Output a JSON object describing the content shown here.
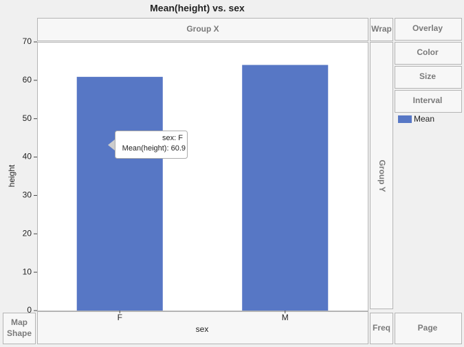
{
  "chart_data": {
    "type": "bar",
    "title": "Mean(height) vs. sex",
    "categories": [
      "F",
      "M"
    ],
    "series": [
      {
        "name": "Mean",
        "color": "#5777c5",
        "values": [
          60.9,
          64
        ]
      }
    ],
    "x_label": "sex",
    "y_label": "height",
    "ylim": [
      0,
      70
    ],
    "yticks": [
      0,
      10,
      20,
      30,
      40,
      50,
      60,
      70
    ],
    "grid": false
  },
  "tooltip": [
    "sex: F",
    "Mean(height): 60.9"
  ],
  "zones": {
    "group_x": "Group X",
    "wrap": "Wrap",
    "overlay": "Overlay",
    "color": "Color",
    "size": "Size",
    "interval": "Interval",
    "group_y": "Group Y",
    "map_shape": [
      "Map",
      "Shape"
    ],
    "freq": "Freq",
    "page": "Page"
  }
}
